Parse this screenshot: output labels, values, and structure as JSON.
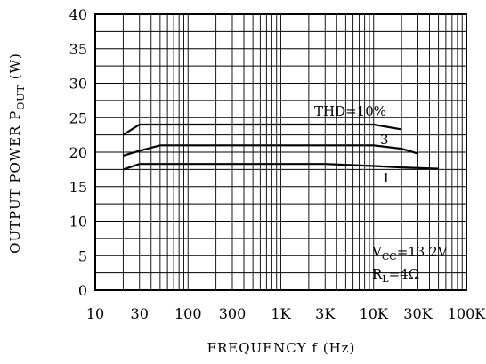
{
  "chart_data": {
    "type": "line",
    "x_scale": "log",
    "xlabel": "FREQUENCY  f  (Hz)",
    "ylabel": "OUTPUT  POWER  P",
    "ylabel_sub": "OUT",
    "ylabel_unit": "  (W)",
    "xlim": [
      10,
      100000
    ],
    "ylim": [
      0,
      40
    ],
    "grid": true,
    "x_ticks": [
      {
        "value": 10,
        "label": "10"
      },
      {
        "value": 30,
        "label": "30"
      },
      {
        "value": 100,
        "label": "100"
      },
      {
        "value": 300,
        "label": "300"
      },
      {
        "value": 1000,
        "label": "1K"
      },
      {
        "value": 3000,
        "label": "3K"
      },
      {
        "value": 10000,
        "label": "10K"
      },
      {
        "value": 30000,
        "label": "30K"
      },
      {
        "value": 100000,
        "label": "100K"
      }
    ],
    "y_ticks": [
      0,
      5,
      10,
      15,
      20,
      25,
      30,
      35,
      40
    ],
    "series": [
      {
        "name": "THD=10%",
        "x": [
          20,
          30,
          50,
          100,
          1000,
          10000,
          20000
        ],
        "y": [
          22.5,
          24,
          24,
          24,
          24,
          24,
          23.3
        ]
      },
      {
        "name": "3",
        "x": [
          20,
          30,
          50,
          100,
          1000,
          10000,
          20000,
          30000
        ],
        "y": [
          19.5,
          20.2,
          21,
          21,
          21,
          21,
          20.5,
          19.8
        ]
      },
      {
        "name": "1",
        "x": [
          20,
          30,
          50,
          100,
          1000,
          3000,
          10000,
          20000,
          50000
        ],
        "y": [
          17.5,
          18.3,
          18.3,
          18.3,
          18.3,
          18.3,
          18,
          17.8,
          17.6
        ]
      }
    ],
    "annotations": {
      "vcc_prefix": "V",
      "vcc_sub": "CC",
      "vcc_value": "=13.2V",
      "rl_prefix": "R",
      "rl_sub": "L",
      "rl_value": "=4Ω"
    }
  }
}
